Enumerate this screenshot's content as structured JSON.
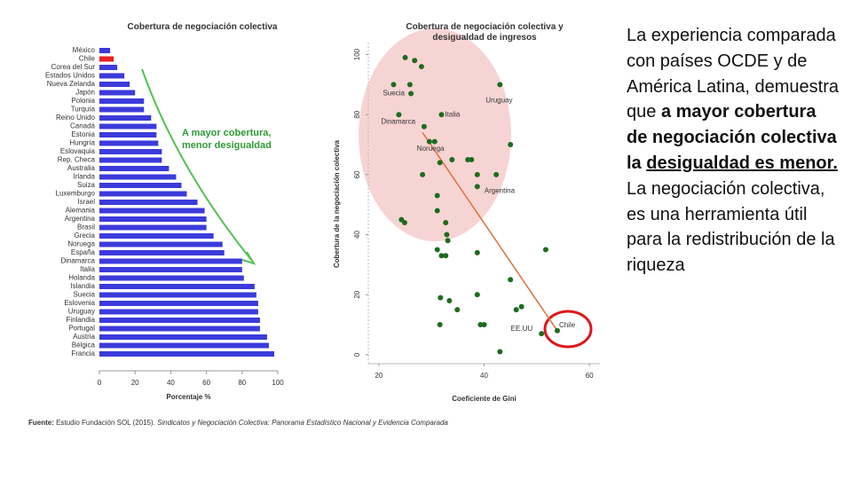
{
  "chart_data": [
    {
      "type": "bar",
      "orientation": "horizontal",
      "title": "Cobertura de negociación colectiva",
      "categories": [
        "México",
        "Chile",
        "Corea del Sur",
        "Estados Unidos",
        "Nueva Zelanda",
        "Japón",
        "Polonia",
        "Turquía",
        "Reino Unido",
        "Canadá",
        "Estonia",
        "Hungría",
        "Eslovaquia",
        "Rep. Checa",
        "Australia",
        "Irlanda",
        "Suiza",
        "Luxemburgo",
        "Israel",
        "Alemania",
        "Argentina",
        "Brasil",
        "Grecia",
        "Noruega",
        "España",
        "Dinamarca",
        "Italia",
        "Holanda",
        "Islandia",
        "Suecia",
        "Eslovenia",
        "Uruguay",
        "Finlandia",
        "Portugal",
        "Austria",
        "Bélgica",
        "Francia"
      ],
      "values": [
        6,
        8,
        10,
        14,
        17,
        20,
        25,
        25,
        29,
        32,
        32,
        33,
        35,
        35,
        39,
        43,
        46,
        49,
        55,
        59,
        60,
        60,
        64,
        69,
        70,
        80,
        80,
        81,
        87,
        88,
        89,
        89,
        90,
        90,
        94,
        95,
        98
      ],
      "colors": [
        "#3b3bdc",
        "#e8211f",
        "#3b3bdc",
        "#3b3bdc",
        "#3b3bdc",
        "#3b3bdc",
        "#3b3bdc",
        "#3b3bdc",
        "#3b3bdc",
        "#3b3bdc",
        "#3b3bdc",
        "#3b3bdc",
        "#3b3bdc",
        "#3b3bdc",
        "#3b3bdc",
        "#3b3bdc",
        "#3b3bdc",
        "#3b3bdc",
        "#3b3bdc",
        "#3b3bdc",
        "#3b3bdc",
        "#3b3bdc",
        "#3b3bdc",
        "#3b3bdc",
        "#3b3bdc",
        "#3b3bdc",
        "#3b3bdc",
        "#3b3bdc",
        "#3b3bdc",
        "#3b3bdc",
        "#3b3bdc",
        "#3b3bdc",
        "#3b3bdc",
        "#3b3bdc",
        "#3b3bdc",
        "#3b3bdc",
        "#3b3bdc"
      ],
      "xlabel": "Porcentaje %",
      "xlim": [
        0,
        100
      ],
      "xticks": [
        0,
        20,
        40,
        60,
        80,
        100
      ],
      "annotation": "A mayor cobertura, menor desigualdad",
      "annotation_color": "#2e9a36"
    },
    {
      "type": "scatter",
      "title": "Cobertura de negociación colectiva y desigualdad de ingresos",
      "xlabel": "Coeficiente de Gini",
      "ylabel": "Cobertura de la negociación colectiva",
      "x": [
        25.0,
        26.8,
        28.1,
        22.8,
        25.9,
        43.0,
        26.1,
        23.8,
        31.9,
        28.6,
        29.6,
        30.6,
        45.0,
        33.9,
        36.9,
        37.6,
        31.6,
        28.3,
        38.7,
        42.3,
        38.7,
        31.1,
        31.1,
        24.3,
        24.9,
        32.7,
        32.9,
        33.1,
        31.1,
        38.7,
        51.7,
        31.9,
        32.7,
        45.0,
        31.7,
        33.4,
        38.7,
        47.1,
        34.9,
        46.1,
        31.6,
        39.3,
        40.0,
        50.9,
        53.9,
        43.0
      ],
      "y": [
        99,
        98,
        96,
        90,
        90,
        90,
        87,
        80,
        80,
        76,
        71,
        71,
        70,
        65,
        65,
        65,
        64,
        60,
        60,
        60,
        56,
        53,
        48,
        45,
        44,
        44,
        40,
        38,
        35,
        34,
        35,
        33,
        33,
        25,
        19,
        18,
        20,
        16,
        15,
        15,
        10,
        10,
        10,
        7,
        8,
        1
      ],
      "point_labels": [
        null,
        null,
        null,
        "Suecia",
        null,
        "Uruguay",
        null,
        "Dinamarca",
        "Italia",
        null,
        "Noruega",
        null,
        null,
        null,
        null,
        null,
        null,
        null,
        null,
        null,
        "Argentina",
        null,
        null,
        null,
        null,
        null,
        null,
        null,
        null,
        null,
        null,
        null,
        null,
        null,
        null,
        null,
        null,
        null,
        null,
        "EE.UU",
        null,
        null,
        null,
        null,
        "Chile",
        null
      ],
      "color": "#1e6b1e",
      "xlim": [
        18,
        62
      ],
      "ylim": [
        -3,
        104
      ],
      "xticks": [
        20,
        40,
        60
      ],
      "yticks": [
        0,
        20,
        40,
        60,
        80,
        100
      ],
      "trend_line": {
        "x": [
          28.3,
          53.9
        ],
        "y": [
          74,
          8
        ],
        "color": "#e0703a"
      }
    }
  ],
  "source": {
    "label": "Fuente:",
    "text": "Estudio Fundación SOL (2015).",
    "title": "Sindicatos y Negociación Colectiva: Panorama Estadístico Nacional y Evidencia Comparada"
  },
  "text_panel": {
    "intro": "La experiencia comparada con países OCDE y de América Latina, demuestra que",
    "emphasis": "a mayor cobertura de negociación colectiva la",
    "emphasis_underlined": "desigualdad es menor.",
    "closing": "La negociación colectiva, es una herramienta útil para la redistribución de la riqueza"
  }
}
